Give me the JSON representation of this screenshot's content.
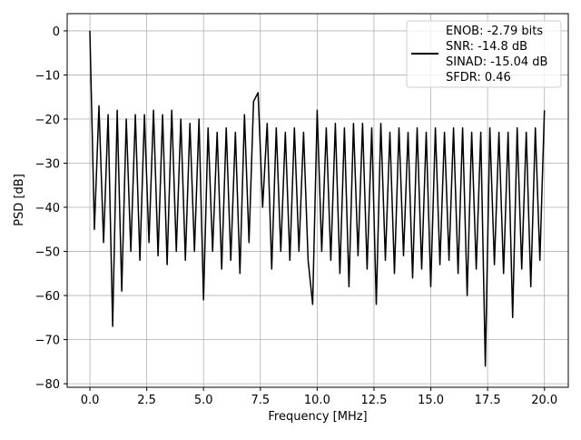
{
  "chart_data": {
    "type": "line",
    "title": "",
    "xlabel": "Frequency [MHz]",
    "ylabel": "PSD [dB]",
    "xlim": [
      -1.0,
      21.05
    ],
    "ylim": [
      -80.8,
      3.9
    ],
    "grid": true,
    "xticks": [
      "0.0",
      "2.5",
      "5.0",
      "7.5",
      "10.0",
      "12.5",
      "15.0",
      "17.5",
      "20.0"
    ],
    "yticks": [
      "0",
      "−10",
      "−20",
      "−30",
      "−40",
      "−50",
      "−60",
      "−70",
      "−80"
    ],
    "line_color": "#000000",
    "legend": {
      "placement": "top-right",
      "entries": [
        "ENOB: -2.79 bits",
        "SNR: -14.8 dB",
        "SINAD: -15.04 dB",
        "SFDR: 0.46"
      ]
    },
    "series": [
      {
        "x_start": 0,
        "x_step": 0.2,
        "values": [
          0,
          -45,
          -17,
          -48,
          -19,
          -67,
          -18,
          -59,
          -20,
          -50,
          -19,
          -52,
          -19,
          -48,
          -18,
          -51,
          -19,
          -53,
          -18,
          -50,
          -20,
          -52,
          -21,
          -50,
          -20,
          -61,
          -22,
          -50,
          -23,
          -54,
          -22,
          -52,
          -23,
          -55,
          -19,
          -48,
          -16,
          -14,
          -40,
          -21,
          -54,
          -22,
          -50,
          -23,
          -52,
          -22,
          -50,
          -23,
          -52,
          -62,
          -18,
          -50,
          -22,
          -52,
          -21,
          -55,
          -22,
          -58,
          -21,
          -51,
          -21,
          -54,
          -22,
          -62,
          -21,
          -52,
          -23,
          -55,
          -22,
          -51,
          -23,
          -56,
          -22,
          -54,
          -23,
          -58,
          -22,
          -53,
          -23,
          -52,
          -22,
          -55,
          -22,
          -60,
          -23,
          -54,
          -23,
          -76,
          -22,
          -53,
          -23,
          -55,
          -23,
          -65,
          -22,
          -54,
          -23,
          -58,
          -22,
          -52,
          -18
        ]
      }
    ]
  }
}
